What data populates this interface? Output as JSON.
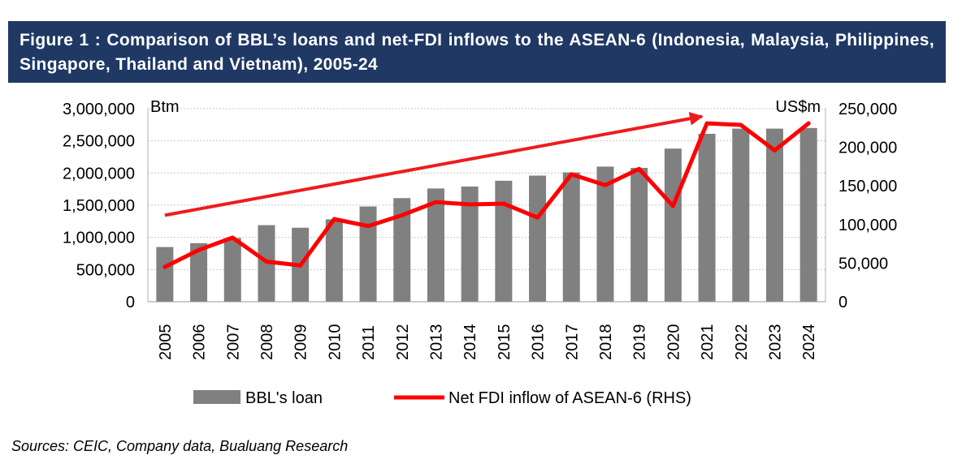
{
  "figure": {
    "title": "Figure 1 : Comparison of BBL’s loans and net-FDI inflows to the ASEAN-6 (Indonesia, Malaysia, Philippines, Singapore, Thailand and Vietnam), 2005-24",
    "source": "Sources: CEIC, Company data, Bualuang Research"
  },
  "colors": {
    "title_bg": "#1f3864",
    "bar": "#808080",
    "line": "#ff0000",
    "trend_arrow": "#ee1c1c"
  },
  "chart_data": {
    "type": "bar",
    "categories": [
      "2005",
      "2006",
      "2007",
      "2008",
      "2009",
      "2010",
      "2011",
      "2012",
      "2013",
      "2014",
      "2015",
      "2016",
      "2017",
      "2018",
      "2019",
      "2020",
      "2021",
      "2022",
      "2023",
      "2024"
    ],
    "series": [
      {
        "name": "BBL's loan",
        "type": "bar",
        "axis": "left",
        "values": [
          850000,
          910000,
          990000,
          1190000,
          1150000,
          1280000,
          1480000,
          1610000,
          1760000,
          1790000,
          1880000,
          1960000,
          2010000,
          2100000,
          2080000,
          2380000,
          2610000,
          2690000,
          2690000,
          2700000
        ]
      },
      {
        "name": "Net FDI inflow of ASEAN-6 (RHS)",
        "type": "line",
        "axis": "right",
        "values": [
          45000,
          67000,
          83000,
          52000,
          47000,
          107000,
          98000,
          112000,
          129000,
          126000,
          127000,
          109000,
          165000,
          151000,
          172000,
          124000,
          231000,
          229000,
          196000,
          231000
        ]
      }
    ],
    "y_left": {
      "unit_label": "Btm",
      "ylim": [
        0,
        3000000
      ],
      "ticks": [
        "0",
        "500,000",
        "1,000,000",
        "1,500,000",
        "2,000,000",
        "2,500,000",
        "3,000,000"
      ]
    },
    "y_right": {
      "unit_label": "US$m",
      "ylim": [
        0,
        250000
      ],
      "ticks": [
        "0",
        "50,000",
        "100,000",
        "150,000",
        "200,000",
        "250,000"
      ]
    },
    "trend_arrow": {
      "from": [
        "2005",
        112000
      ],
      "to": [
        "2021",
        240000
      ]
    },
    "grid": true,
    "legend_position": "bottom"
  }
}
